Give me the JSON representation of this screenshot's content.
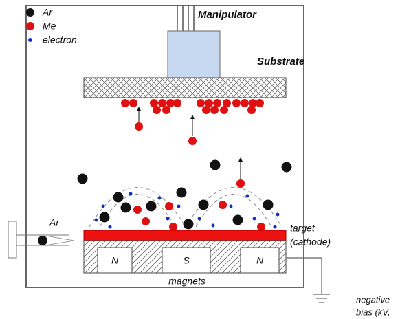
{
  "legend": [
    {
      "label": "Ar"
    },
    {
      "label": "Me"
    },
    {
      "label": "electron"
    }
  ],
  "labels": {
    "manipulator": "Manipulator",
    "substrate": "Substrate",
    "gas_inlet": "Ar",
    "target": "target",
    "target_note": "(cathode)",
    "magnets": "magnets",
    "bias": "negative",
    "bias_note": "bias (kV,"
  },
  "magnets": [
    {
      "label": "N"
    },
    {
      "label": "S"
    },
    {
      "label": "N"
    }
  ]
}
